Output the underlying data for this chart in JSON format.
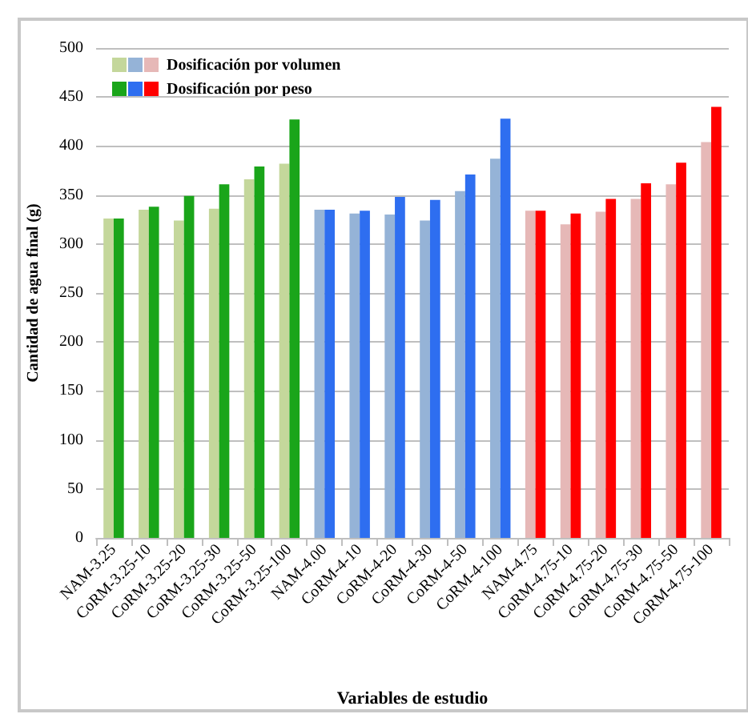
{
  "chart_data": {
    "type": "bar",
    "xlabel": "Variables de estudio",
    "ylabel": "Cantidad de agua final (g)",
    "categories": [
      "NAM-3.25",
      "CoRM-3.25-10",
      "CoRM-3.25-20",
      "CoRM-3.25-30",
      "CoRM-3.25-50",
      "CoRM-3.25-100",
      "NAM-4.00",
      "CoRM-4-10",
      "CoRM-4-20",
      "CoRM-4-30",
      "CoRM-4-50",
      "CoRM-4-100",
      "NAM-4.75",
      "CoRM-4.75-10",
      "CoRM-4.75-20",
      "CoRM-4.75-30",
      "CoRM-4.75-50",
      "CoRM-4.75-100"
    ],
    "series": [
      {
        "name": "Dosificación por volumen",
        "colors": [
          "#c4d79b",
          "#c4d79b",
          "#c4d79b",
          "#c4d79b",
          "#c4d79b",
          "#c4d79b",
          "#95b3d7",
          "#95b3d7",
          "#95b3d7",
          "#95b3d7",
          "#95b3d7",
          "#95b3d7",
          "#e6b8b7",
          "#e6b8b7",
          "#e6b8b7",
          "#e6b8b7",
          "#e6b8b7",
          "#e6b8b7"
        ],
        "values": [
          326,
          335,
          324,
          336,
          366,
          382,
          335,
          331,
          330,
          324,
          354,
          387,
          334,
          320,
          333,
          346,
          361,
          404
        ]
      },
      {
        "name": "Dosificación por peso",
        "colors": [
          "#1aa51a",
          "#1aa51a",
          "#1aa51a",
          "#1aa51a",
          "#1aa51a",
          "#1aa51a",
          "#2e6ef0",
          "#2e6ef0",
          "#2e6ef0",
          "#2e6ef0",
          "#2e6ef0",
          "#2e6ef0",
          "#ff0000",
          "#ff0000",
          "#ff0000",
          "#ff0000",
          "#ff0000",
          "#ff0000"
        ],
        "values": [
          326,
          338,
          349,
          361,
          379,
          427,
          335,
          334,
          348,
          345,
          371,
          428,
          334,
          331,
          346,
          362,
          383,
          440
        ]
      }
    ],
    "ylim": [
      0,
      500
    ],
    "yticks": [
      0,
      50,
      100,
      150,
      200,
      250,
      300,
      350,
      400,
      450,
      500
    ],
    "grid": "y",
    "legend": "top left"
  }
}
